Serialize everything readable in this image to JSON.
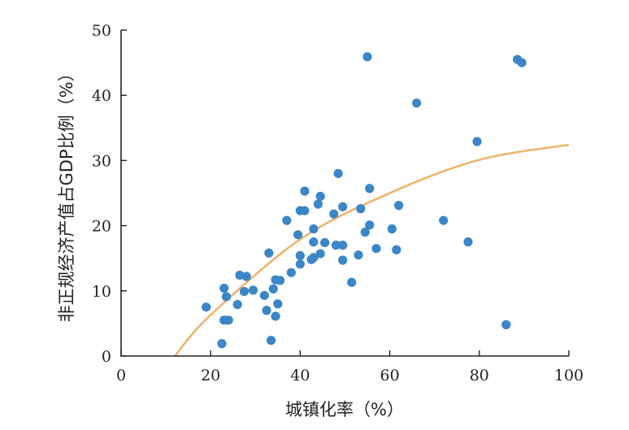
{
  "chart_data": {
    "type": "scatter",
    "title": "",
    "xlabel": "城镇化率（%）",
    "ylabel": "非正规经济产值占GDP比例（%）",
    "xlim": [
      0,
      100
    ],
    "ylim": [
      0,
      50
    ],
    "xticks": [
      "0",
      "20",
      "40",
      "60",
      "80",
      "100"
    ],
    "yticks": [
      "0",
      "10",
      "20",
      "30",
      "40",
      "50"
    ],
    "grid": false,
    "colors": {
      "points": "#3b86c6",
      "fit": "#efb46c",
      "axis": "#222222"
    },
    "series": [
      {
        "values": [
          [
            19,
            7.5
          ],
          [
            22.5,
            1.9
          ],
          [
            23,
            10.4
          ],
          [
            23,
            5.5
          ],
          [
            23.5,
            9.1
          ],
          [
            24,
            5.5
          ],
          [
            26,
            7.9
          ],
          [
            26.5,
            12.4
          ],
          [
            27.5,
            9.9
          ],
          [
            28,
            12.2
          ],
          [
            29.5,
            10.1
          ],
          [
            32,
            9.3
          ],
          [
            32.5,
            7
          ],
          [
            33,
            15.8
          ],
          [
            33.5,
            2.4
          ],
          [
            34,
            10.3
          ],
          [
            34.5,
            11.7
          ],
          [
            34.5,
            6.1
          ],
          [
            35,
            8
          ],
          [
            35.5,
            11.6
          ],
          [
            37,
            20.8
          ],
          [
            38,
            12.8
          ],
          [
            39.5,
            18.6
          ],
          [
            40,
            22.3
          ],
          [
            40,
            15.4
          ],
          [
            40,
            14.1
          ],
          [
            41,
            25.3
          ],
          [
            41,
            22.3
          ],
          [
            42.5,
            14.8
          ],
          [
            43,
            19.5
          ],
          [
            43,
            17.5
          ],
          [
            43,
            15.1
          ],
          [
            44,
            23.3
          ],
          [
            44.5,
            24.5
          ],
          [
            44.5,
            15.7
          ],
          [
            45.5,
            17.4
          ],
          [
            47.5,
            21.8
          ],
          [
            48,
            17
          ],
          [
            48.5,
            28
          ],
          [
            49.5,
            22.9
          ],
          [
            49.5,
            14.7
          ],
          [
            49.5,
            17
          ],
          [
            51.5,
            11.3
          ],
          [
            53,
            15.5
          ],
          [
            53.5,
            22.6
          ],
          [
            54.5,
            19
          ],
          [
            55,
            45.9
          ],
          [
            55.5,
            25.7
          ],
          [
            55.5,
            20.1
          ],
          [
            57,
            16.5
          ],
          [
            60.5,
            19.5
          ],
          [
            61.5,
            16.3
          ],
          [
            62,
            23.1
          ],
          [
            66,
            38.8
          ],
          [
            72,
            20.8
          ],
          [
            77.5,
            17.5
          ],
          [
            79.5,
            32.9
          ],
          [
            86,
            4.8
          ],
          [
            88.5,
            45.5
          ],
          [
            89.5,
            45
          ]
        ]
      }
    ],
    "fit_curve": {
      "kind": "quadratic",
      "x_range": [
        12,
        100
      ],
      "points": [
        [
          12,
          0
        ],
        [
          20,
          6.3
        ],
        [
          40,
          17.9
        ],
        [
          60,
          25
        ],
        [
          80,
          30.1
        ],
        [
          100,
          32.4
        ]
      ]
    }
  }
}
